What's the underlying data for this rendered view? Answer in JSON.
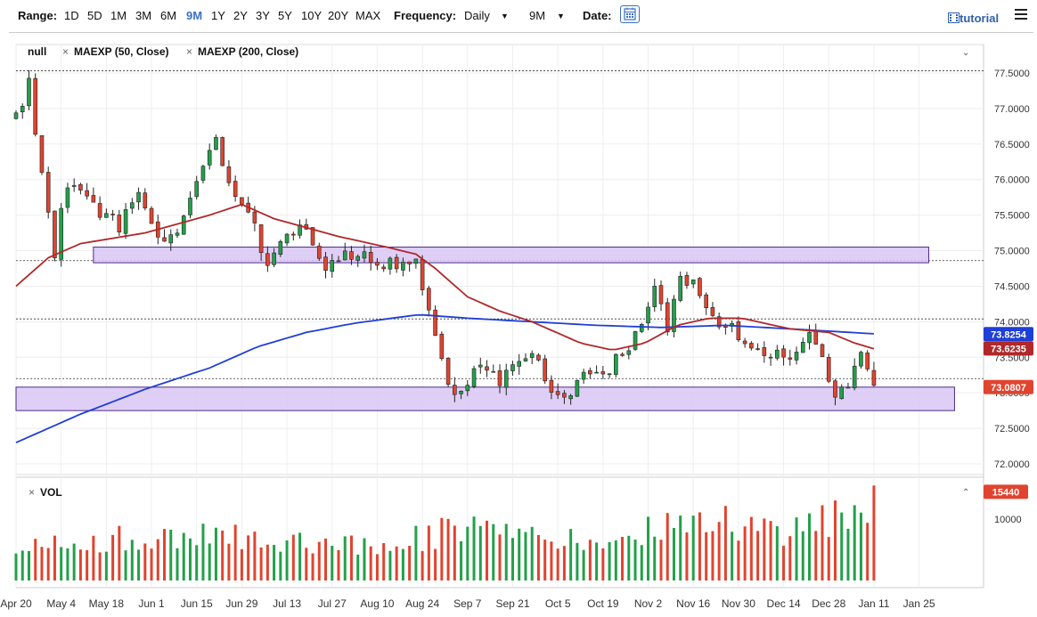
{
  "toolbar": {
    "range_label": "Range:",
    "ranges": [
      "1D",
      "5D",
      "1M",
      "3M",
      "6M",
      "9M",
      "1Y",
      "2Y",
      "3Y",
      "5Y",
      "10Y",
      "20Y",
      "MAX"
    ],
    "active_range": "9M",
    "frequency_label": "Frequency:",
    "frequency_value": "Daily",
    "period_value": "9M",
    "date_label": "Date:",
    "tutorial_label": "tutorial",
    "calendar_icon": "calendar-icon",
    "menu_icon": "hamburger-menu-icon"
  },
  "legend": {
    "series_name": "null",
    "ma1": "MAEXP (50, Close)",
    "ma2": "MAEXP (200, Close)",
    "remove_icon": "×",
    "collapse_icon": "chevron-down-icon"
  },
  "volume": {
    "title": "VOL",
    "expand_icon": "chevron-up-icon"
  },
  "colors": {
    "up": "#23a04a",
    "down": "#e0442f",
    "ma50": "#b0282a",
    "ma200": "#1f3fd6",
    "zone_fill": "#d9c7f5",
    "zone_stroke": "#4a2a8a",
    "label_blue": "#1f3fd6",
    "label_red": "#e0442f"
  },
  "chart_data": {
    "type": "candlestick",
    "title": "",
    "price_axis": {
      "range": [
        71.85,
        77.65
      ],
      "ticks": [
        "77.5000",
        "77.0000",
        "76.5000",
        "76.0000",
        "75.5000",
        "75.0000",
        "74.5000",
        "74.0000",
        "73.5000",
        "73.0000",
        "72.5000",
        "72.0000"
      ],
      "tick_values": [
        77.5,
        77.0,
        76.5,
        76.0,
        75.5,
        75.0,
        74.5,
        74.0,
        73.5,
        73.0,
        72.5,
        72.0
      ]
    },
    "x_axis": {
      "labels": [
        "Apr 20",
        "May 4",
        "May 18",
        "Jun 1",
        "Jun 15",
        "Jun 29",
        "Jul 13",
        "Jul 27",
        "Aug 10",
        "Aug 24",
        "Sep 7",
        "Sep 21",
        "Oct 5",
        "Oct 19",
        "Nov 2",
        "Nov 16",
        "Nov 30",
        "Dec 14",
        "Dec 28",
        "Jan 11",
        "Jan 25"
      ],
      "label_day_index": [
        0,
        14,
        28,
        42,
        56,
        70,
        84,
        98,
        112,
        126,
        140,
        154,
        168,
        182,
        196,
        210,
        224,
        238,
        252,
        266,
        280
      ]
    },
    "value_labels": [
      {
        "name": "MAEXP 200",
        "value": "73.8254",
        "color": "#1f3fd6"
      },
      {
        "name": "MAEXP 50",
        "value": "73.6235",
        "color": "#b0282a"
      },
      {
        "name": "Last",
        "value": "73.0807",
        "color": "#e0442f"
      }
    ],
    "dashed_levels": [
      77.53,
      74.86,
      74.04,
      73.2
    ],
    "zones": [
      {
        "from": 74.83,
        "to": 75.05,
        "start_day": 24,
        "end_day": 283
      },
      {
        "from": 72.75,
        "to": 73.08,
        "start_day": 0,
        "end_day": 291
      }
    ],
    "price_anchors": [
      [
        0,
        76.85
      ],
      [
        4,
        77.35
      ],
      [
        7,
        76.3
      ],
      [
        12,
        75.0
      ],
      [
        15,
        75.8
      ],
      [
        20,
        75.9
      ],
      [
        26,
        75.5
      ],
      [
        32,
        75.35
      ],
      [
        38,
        75.8
      ],
      [
        44,
        75.1
      ],
      [
        52,
        75.4
      ],
      [
        56,
        76.0
      ],
      [
        62,
        76.55
      ],
      [
        66,
        75.95
      ],
      [
        72,
        75.6
      ],
      [
        78,
        74.7
      ],
      [
        84,
        75.2
      ],
      [
        90,
        75.3
      ],
      [
        96,
        74.7
      ],
      [
        104,
        74.95
      ],
      [
        112,
        74.9
      ],
      [
        118,
        74.75
      ],
      [
        124,
        74.8
      ],
      [
        128,
        74.2
      ],
      [
        132,
        73.5
      ],
      [
        136,
        72.9
      ],
      [
        140,
        73.2
      ],
      [
        144,
        73.45
      ],
      [
        150,
        73.2
      ],
      [
        156,
        73.35
      ],
      [
        160,
        73.5
      ],
      [
        166,
        73.1
      ],
      [
        170,
        73.0
      ],
      [
        176,
        73.2
      ],
      [
        182,
        73.3
      ],
      [
        188,
        73.5
      ],
      [
        194,
        73.9
      ],
      [
        198,
        74.5
      ],
      [
        202,
        73.8
      ],
      [
        206,
        74.7
      ],
      [
        210,
        74.5
      ],
      [
        216,
        74.0
      ],
      [
        222,
        73.9
      ],
      [
        228,
        73.55
      ],
      [
        234,
        73.6
      ],
      [
        240,
        73.5
      ],
      [
        246,
        73.95
      ],
      [
        250,
        73.5
      ],
      [
        254,
        73.0
      ],
      [
        258,
        73.05
      ],
      [
        262,
        73.5
      ],
      [
        266,
        73.08
      ]
    ],
    "ma50": [
      [
        0,
        74.5
      ],
      [
        10,
        74.9
      ],
      [
        20,
        75.1
      ],
      [
        40,
        75.25
      ],
      [
        60,
        75.5
      ],
      [
        70,
        75.65
      ],
      [
        80,
        75.45
      ],
      [
        100,
        75.2
      ],
      [
        115,
        75.05
      ],
      [
        124,
        74.95
      ],
      [
        130,
        74.75
      ],
      [
        140,
        74.35
      ],
      [
        150,
        74.15
      ],
      [
        160,
        74.0
      ],
      [
        175,
        73.7
      ],
      [
        185,
        73.6
      ],
      [
        195,
        73.7
      ],
      [
        205,
        73.95
      ],
      [
        215,
        74.05
      ],
      [
        225,
        74.05
      ],
      [
        240,
        73.9
      ],
      [
        252,
        73.85
      ],
      [
        260,
        73.7
      ],
      [
        266,
        73.62
      ]
    ],
    "ma200": [
      [
        0,
        72.3
      ],
      [
        20,
        72.7
      ],
      [
        40,
        73.05
      ],
      [
        60,
        73.35
      ],
      [
        75,
        73.65
      ],
      [
        90,
        73.85
      ],
      [
        105,
        73.98
      ],
      [
        125,
        74.1
      ],
      [
        140,
        74.05
      ],
      [
        160,
        74.0
      ],
      [
        180,
        73.95
      ],
      [
        200,
        73.92
      ],
      [
        220,
        73.95
      ],
      [
        240,
        73.9
      ],
      [
        255,
        73.86
      ],
      [
        266,
        73.83
      ]
    ],
    "volume": {
      "axis_ticks": [
        "10000"
      ],
      "axis_range": [
        0,
        16500
      ],
      "last_value": "15440",
      "anchors": [
        [
          0,
          6500
        ],
        [
          20,
          7500
        ],
        [
          40,
          8500
        ],
        [
          60,
          9000
        ],
        [
          80,
          8000
        ],
        [
          100,
          7500
        ],
        [
          120,
          7800
        ],
        [
          140,
          10500
        ],
        [
          160,
          8000
        ],
        [
          180,
          7500
        ],
        [
          195,
          9500
        ],
        [
          205,
          11500
        ],
        [
          225,
          11000
        ],
        [
          240,
          9000
        ],
        [
          255,
          13500
        ],
        [
          266,
          15440
        ]
      ]
    }
  }
}
